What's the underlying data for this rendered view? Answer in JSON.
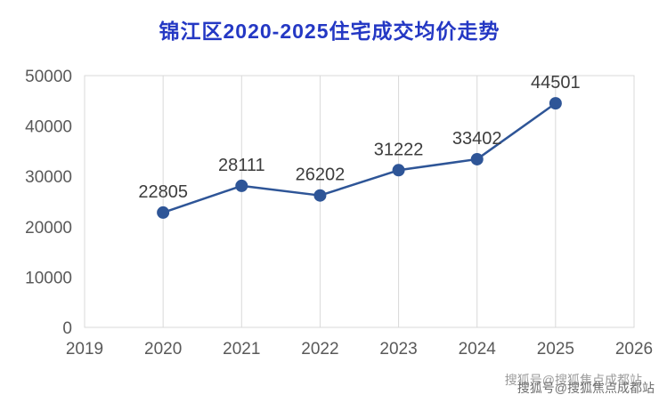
{
  "title": "锦江区2020-2025住宅成交均价走势",
  "watermark": "搜狐号@搜狐焦点成都站",
  "colors": {
    "title": "#2438c4",
    "line": "#2e5597",
    "grid": "#d9d9d9",
    "axis_text": "#595959",
    "value_text": "#3d3d3d"
  },
  "chart_data": {
    "type": "line",
    "title": "锦江区2020-2025住宅成交均价走势",
    "x": [
      2020,
      2021,
      2022,
      2023,
      2024,
      2025
    ],
    "values": [
      22805,
      28111,
      26202,
      31222,
      33402,
      44501
    ],
    "series": [
      {
        "name": "住宅成交均价",
        "values": [
          22805,
          28111,
          26202,
          31222,
          33402,
          44501
        ]
      }
    ],
    "xlabel": "",
    "ylabel": "",
    "xlim": [
      2019,
      2026
    ],
    "ylim": [
      0,
      50000
    ],
    "x_ticks": [
      2019,
      2020,
      2021,
      2022,
      2023,
      2024,
      2025,
      2026
    ],
    "y_ticks": [
      0,
      10000,
      20000,
      30000,
      40000,
      50000
    ],
    "grid": "vertical-only",
    "legend": "none",
    "marker": "circle"
  }
}
